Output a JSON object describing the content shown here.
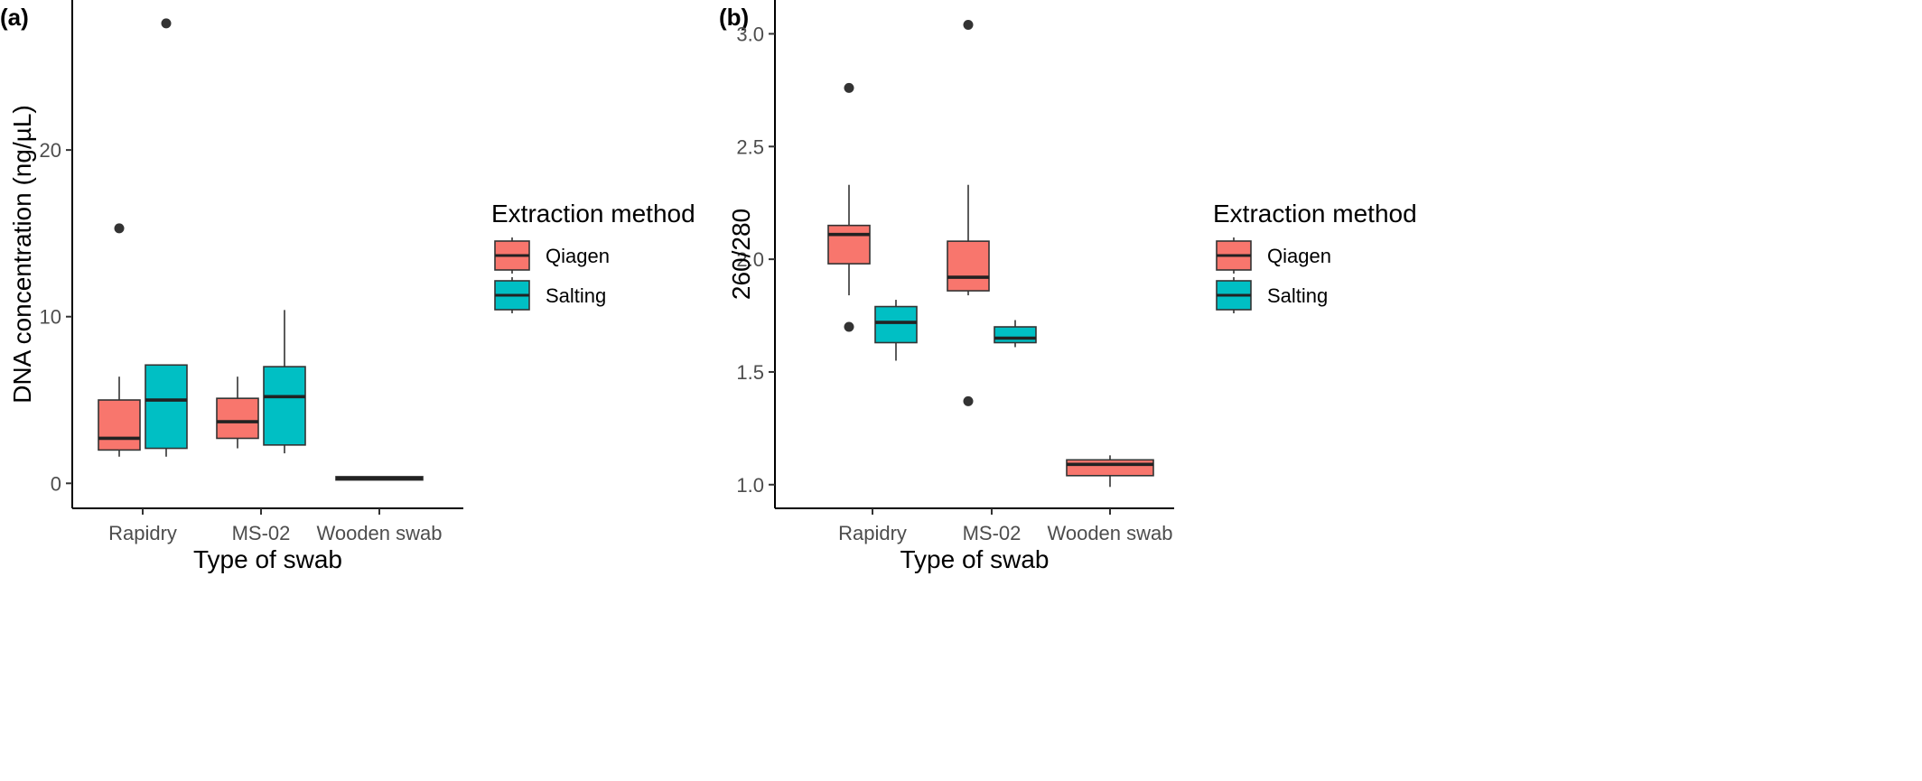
{
  "chart_data": [
    {
      "type": "box",
      "panel_label": "(a)",
      "xlabel": "Type of swab",
      "ylabel": "DNA concentration (ng/µL)",
      "ylim": [
        -1.5,
        29
      ],
      "yticks": [
        0,
        10,
        20
      ],
      "ytick_labels": [
        "0",
        "10",
        "20"
      ],
      "categories": [
        "Rapidry",
        "MS-02",
        "Wooden swab"
      ],
      "grid": false,
      "legend": {
        "title": "Extraction method",
        "position": "right",
        "entries": [
          "Qiagen",
          "Salting"
        ]
      },
      "series": [
        {
          "name": "Qiagen",
          "color": "#F8766D",
          "boxes": [
            {
              "category": "Rapidry",
              "min": 1.6,
              "q1": 2.0,
              "median": 2.7,
              "q3": 5.0,
              "max": 6.4,
              "outliers": [
                15.3
              ]
            },
            {
              "category": "MS-02",
              "min": 2.1,
              "q1": 2.7,
              "median": 3.7,
              "q3": 5.1,
              "max": 6.4,
              "outliers": []
            },
            {
              "category": "Wooden swab",
              "min": 0.2,
              "q1": 0.2,
              "median": 0.3,
              "q3": 0.4,
              "max": 0.4,
              "outliers": []
            }
          ]
        },
        {
          "name": "Salting",
          "color": "#00BFC4",
          "boxes": [
            {
              "category": "Rapidry",
              "min": 1.6,
              "q1": 2.1,
              "median": 5.0,
              "q3": 7.1,
              "max": 7.1,
              "outliers": [
                27.6
              ]
            },
            {
              "category": "MS-02",
              "min": 1.8,
              "q1": 2.3,
              "median": 5.2,
              "q3": 7.0,
              "max": 10.4,
              "outliers": []
            }
          ]
        }
      ]
    },
    {
      "type": "box",
      "panel_label": "(b)",
      "xlabel": "Type of swab",
      "ylabel": "260/280",
      "ylim": [
        0.895,
        3.15
      ],
      "yticks": [
        1.0,
        1.5,
        2.0,
        2.5,
        3.0
      ],
      "ytick_labels": [
        "1.0",
        "1.5",
        "2.0",
        "2.5",
        "3.0"
      ],
      "categories": [
        "Rapidry",
        "MS-02",
        "Wooden swab"
      ],
      "grid": false,
      "legend": {
        "title": "Extraction method",
        "position": "right",
        "entries": [
          "Qiagen",
          "Salting"
        ]
      },
      "series": [
        {
          "name": "Qiagen",
          "color": "#F8766D",
          "boxes": [
            {
              "category": "Rapidry",
              "min": 1.84,
              "q1": 1.98,
              "median": 2.11,
              "q3": 2.15,
              "max": 2.33,
              "outliers": [
                2.76,
                1.7
              ]
            },
            {
              "category": "MS-02",
              "min": 1.84,
              "q1": 1.86,
              "median": 1.92,
              "q3": 2.08,
              "max": 2.33,
              "outliers": [
                3.04,
                1.37
              ]
            },
            {
              "category": "Wooden swab",
              "min": 0.99,
              "q1": 1.04,
              "median": 1.09,
              "q3": 1.11,
              "max": 1.13,
              "outliers": []
            }
          ]
        },
        {
          "name": "Salting",
          "color": "#00BFC4",
          "boxes": [
            {
              "category": "Rapidry",
              "min": 1.55,
              "q1": 1.63,
              "median": 1.72,
              "q3": 1.79,
              "max": 1.82,
              "outliers": []
            },
            {
              "category": "MS-02",
              "min": 1.61,
              "q1": 1.63,
              "median": 1.65,
              "q3": 1.7,
              "max": 1.73,
              "outliers": []
            }
          ]
        }
      ]
    }
  ]
}
